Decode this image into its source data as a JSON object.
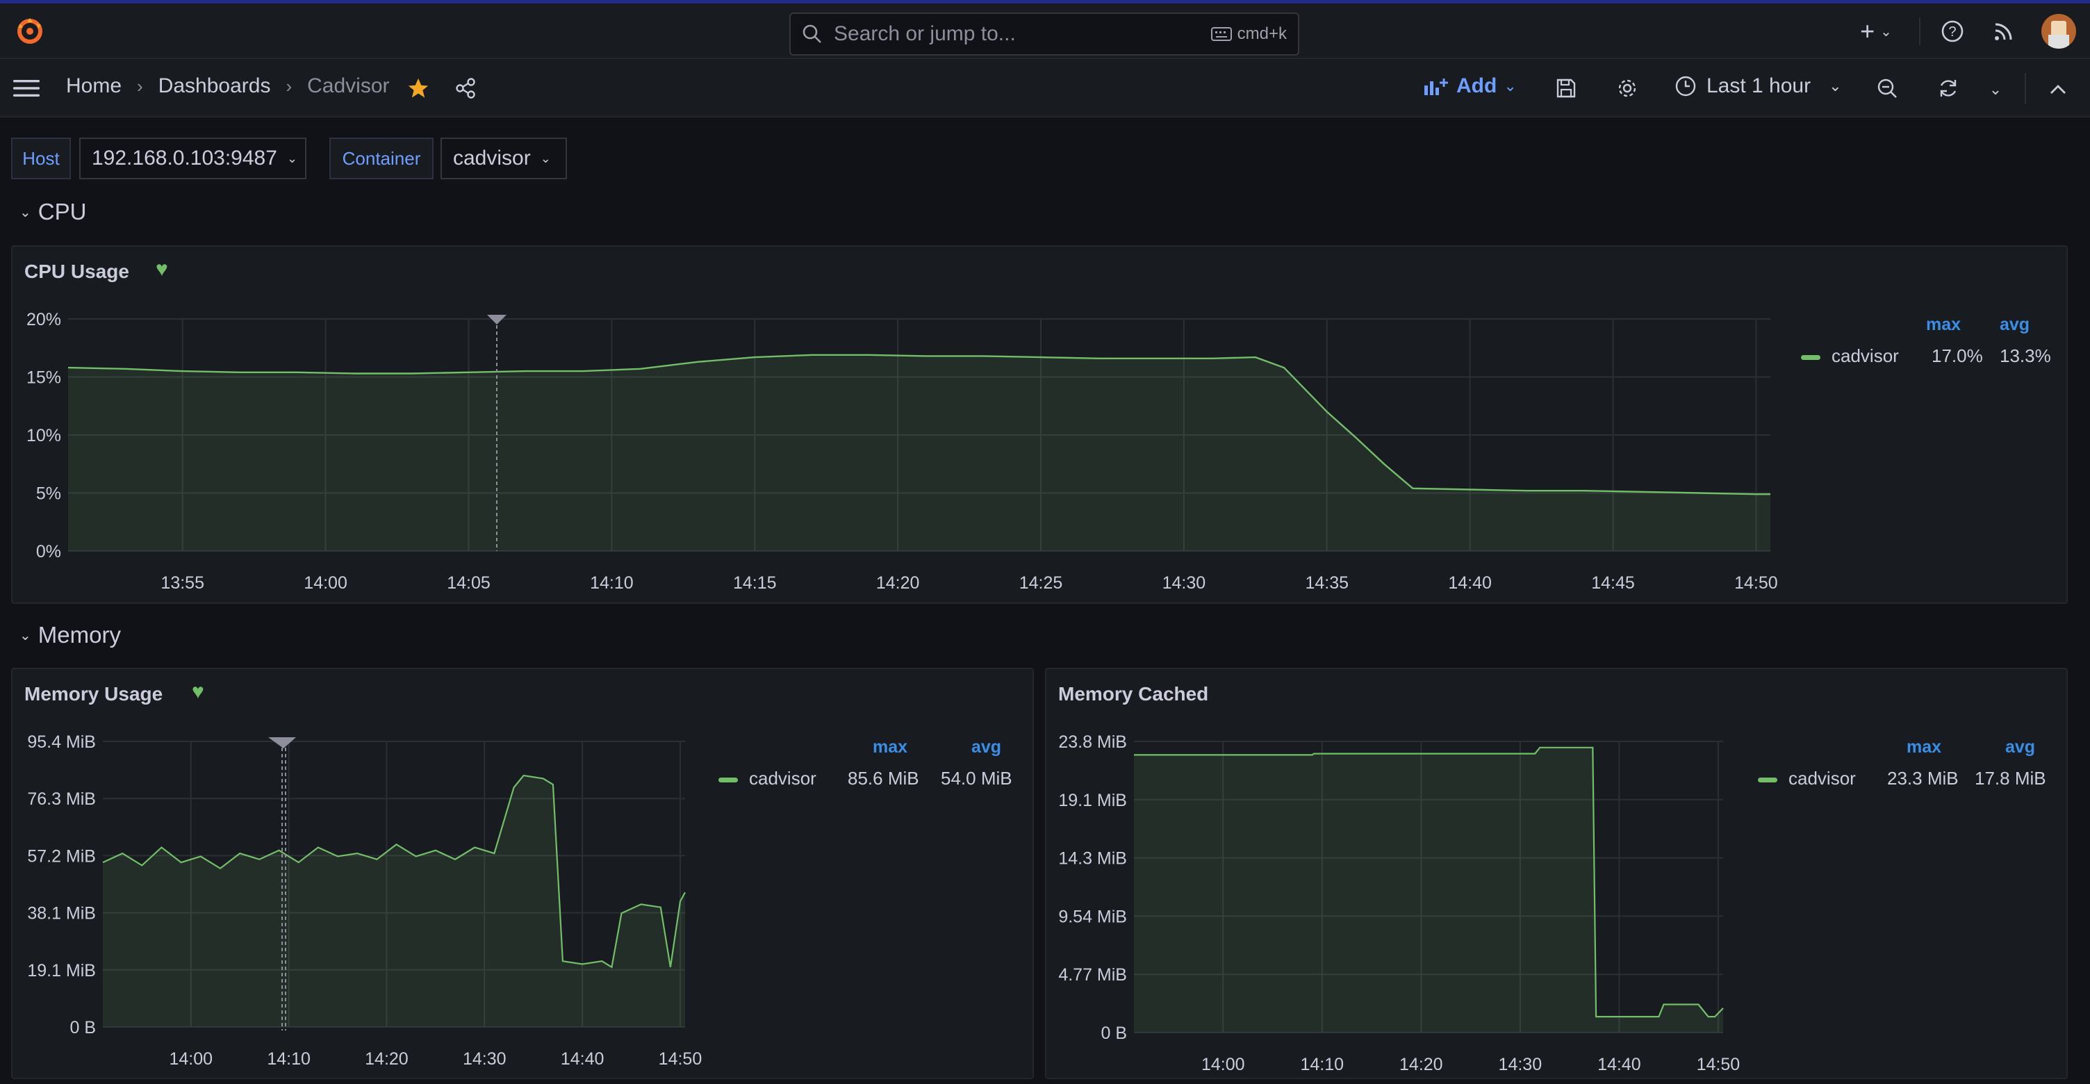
{
  "topbar": {
    "search_placeholder": "Search or jump to...",
    "search_shortcut": "cmd+k"
  },
  "breadcrumb": [
    "Home",
    "Dashboards",
    "Cadvisor"
  ],
  "toolbar": {
    "add_label": "Add",
    "time_range": "Last 1 hour"
  },
  "variables": [
    {
      "label": "Host",
      "value": "192.168.0.103:9487"
    },
    {
      "label": "Container",
      "value": "cadvisor"
    }
  ],
  "rows": {
    "cpu": "CPU",
    "memory": "Memory"
  },
  "colors": {
    "series": "#73bf69",
    "accent": "#6e9fff",
    "legend_header": "#3a8ee6",
    "star": "#f5a623"
  },
  "panels": {
    "cpu_usage": {
      "title": "CPU Usage",
      "legend": {
        "headers": [
          "max",
          "avg"
        ],
        "series": "cadvisor",
        "max": "17.0%",
        "avg": "13.3%"
      }
    },
    "memory_usage": {
      "title": "Memory Usage",
      "legend": {
        "headers": [
          "max",
          "avg"
        ],
        "series": "cadvisor",
        "max": "85.6 MiB",
        "avg": "54.0 MiB"
      }
    },
    "memory_cached": {
      "title": "Memory Cached",
      "legend": {
        "headers": [
          "max",
          "avg"
        ],
        "series": "cadvisor",
        "max": "23.3 MiB",
        "avg": "17.8 MiB"
      }
    }
  },
  "chart_data": [
    {
      "type": "line",
      "title": "CPU Usage",
      "y_ticks": [
        "0%",
        "5%",
        "10%",
        "15%",
        "20%"
      ],
      "x_ticks": [
        "13:55",
        "14:00",
        "14:05",
        "14:10",
        "14:15",
        "14:20",
        "14:25",
        "14:30",
        "14:35",
        "14:40",
        "14:45",
        "14:50"
      ],
      "x_range": [
        "13:51",
        "14:50:30"
      ],
      "ylim": [
        0,
        20
      ],
      "unit": "%",
      "grid": true,
      "legend_placement": "right",
      "series": [
        {
          "name": "cadvisor",
          "x": [
            "13:51",
            "13:53",
            "13:55",
            "13:57",
            "13:59",
            "14:01",
            "14:03",
            "14:05",
            "14:07",
            "14:09",
            "14:11",
            "14:13",
            "14:15",
            "14:17",
            "14:19",
            "14:21",
            "14:23",
            "14:25",
            "14:27",
            "14:29",
            "14:31",
            "14:32:30",
            "14:33:30",
            "14:35",
            "14:36",
            "14:37",
            "14:38",
            "14:40",
            "14:42",
            "14:44",
            "14:46",
            "14:48",
            "14:50",
            "14:50:30"
          ],
          "values": [
            15.8,
            15.7,
            15.5,
            15.4,
            15.4,
            15.3,
            15.3,
            15.4,
            15.5,
            15.5,
            15.7,
            16.3,
            16.7,
            16.9,
            16.9,
            16.8,
            16.8,
            16.7,
            16.6,
            16.6,
            16.6,
            16.7,
            15.8,
            12.0,
            9.8,
            7.5,
            5.4,
            5.3,
            5.2,
            5.2,
            5.1,
            5.0,
            4.9,
            4.9
          ]
        }
      ]
    },
    {
      "type": "line",
      "title": "Memory Usage",
      "y_ticks": [
        "0 B",
        "19.1 MiB",
        "38.1 MiB",
        "57.2 MiB",
        "76.3 MiB",
        "95.4 MiB"
      ],
      "x_ticks": [
        "14:00",
        "14:10",
        "14:20",
        "14:30",
        "14:40",
        "14:50"
      ],
      "x_range": [
        "13:51",
        "14:50:30"
      ],
      "ylim": [
        0,
        95.4
      ],
      "unit": "MiB",
      "grid": true,
      "legend_placement": "right",
      "series": [
        {
          "name": "cadvisor",
          "x": [
            "13:51",
            "13:53",
            "13:55",
            "13:57",
            "13:59",
            "14:01",
            "14:03",
            "14:05",
            "14:07",
            "14:09",
            "14:11",
            "14:13",
            "14:15",
            "14:17",
            "14:19",
            "14:21",
            "14:23",
            "14:25",
            "14:27",
            "14:29",
            "14:31",
            "14:33",
            "14:34",
            "14:36",
            "14:37",
            "14:38",
            "14:40",
            "14:42",
            "14:43",
            "14:44",
            "14:46",
            "14:48",
            "14:49",
            "14:50",
            "14:50:30"
          ],
          "values": [
            55,
            58,
            54,
            60,
            55,
            57,
            53,
            58,
            56,
            59,
            55,
            60,
            57,
            58,
            56,
            61,
            57,
            59,
            56,
            60,
            58,
            80,
            84,
            83,
            81,
            22,
            21,
            22,
            20,
            38,
            41,
            40,
            20,
            42,
            45
          ]
        }
      ]
    },
    {
      "type": "line",
      "title": "Memory Cached",
      "y_ticks": [
        "0 B",
        "4.77 MiB",
        "9.54 MiB",
        "14.3 MiB",
        "19.1 MiB",
        "23.8 MiB"
      ],
      "x_ticks": [
        "14:00",
        "14:10",
        "14:20",
        "14:30",
        "14:40",
        "14:50"
      ],
      "x_range": [
        "13:51",
        "14:50:30"
      ],
      "ylim": [
        0,
        23.8
      ],
      "unit": "MiB",
      "grid": true,
      "legend_placement": "right",
      "series": [
        {
          "name": "cadvisor",
          "x": [
            "13:51",
            "14:00",
            "14:09",
            "14:09:10",
            "14:20",
            "14:31:30",
            "14:32",
            "14:32:30",
            "14:37:20",
            "14:37:40",
            "14:44",
            "14:44:30",
            "14:48",
            "14:49",
            "14:49:40",
            "14:50:30"
          ],
          "values": [
            22.7,
            22.7,
            22.7,
            22.8,
            22.8,
            22.8,
            23.3,
            23.3,
            23.3,
            1.3,
            1.3,
            2.3,
            2.3,
            1.3,
            1.3,
            2.0
          ]
        }
      ]
    }
  ]
}
